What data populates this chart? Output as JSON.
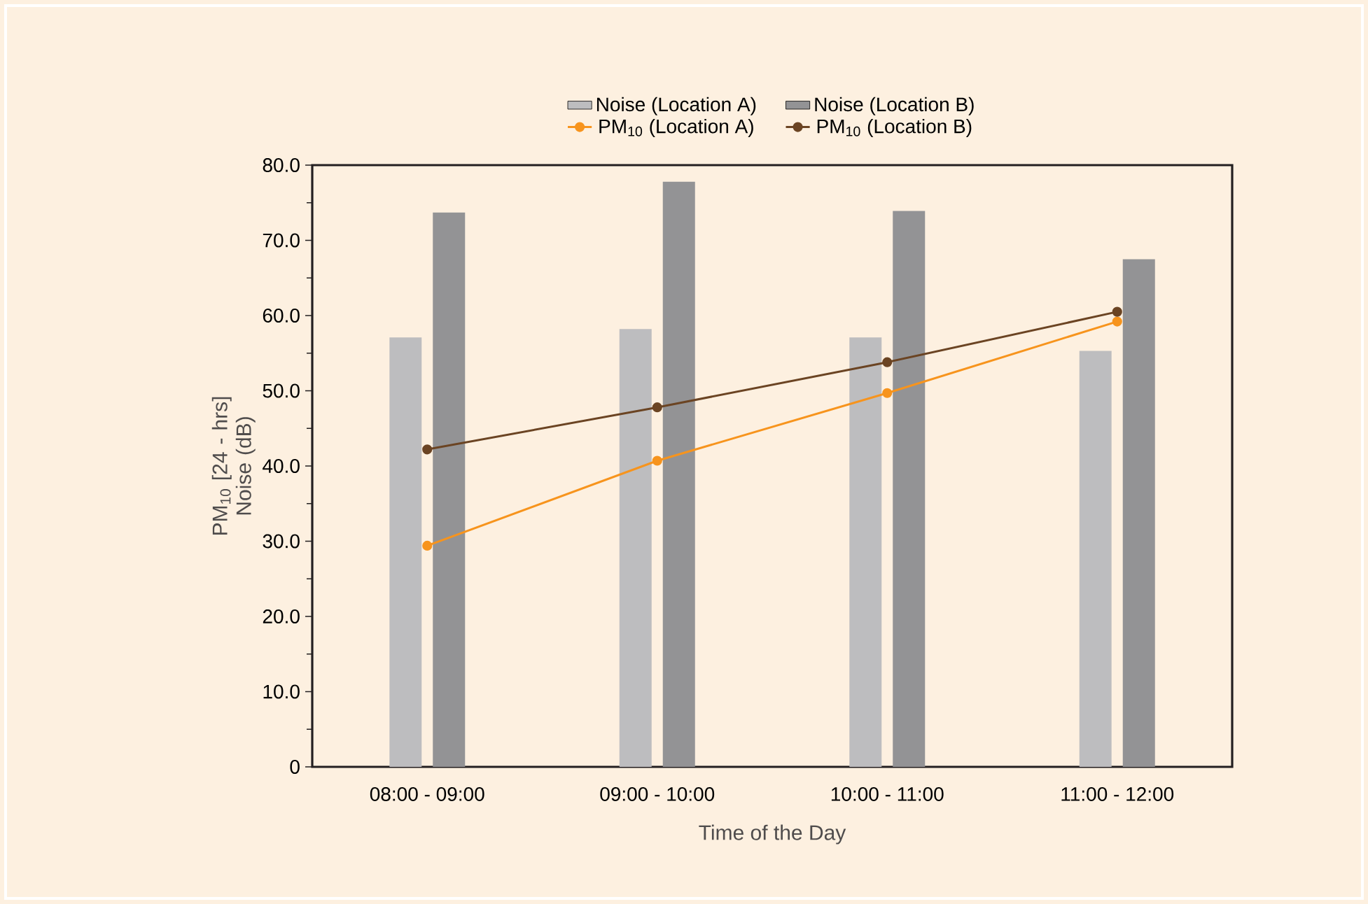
{
  "chart_data": {
    "type": "bar",
    "xlabel": "Time of the Day",
    "ylabel": "PM$_{10}$ [24 - hrs] Noise (dB)",
    "categories": [
      "08:00 - 09:00",
      "09:00 - 10:00",
      "10:00 - 11:00",
      "11:00 - 12:00"
    ],
    "series": [
      {
        "name": "Noise (Location A)",
        "color": "#bdbdbf",
        "values": [
          57.1,
          58.2,
          57.1,
          55.3
        ]
      },
      {
        "name": "Noise (Location B)",
        "color": "#939395",
        "values": [
          73.7,
          77.8,
          73.9,
          67.5
        ]
      },
      {
        "name": "PM$_{10}$ (Location A)",
        "type": "line",
        "color": "#f7941d",
        "values": [
          29.4,
          40.7,
          49.7,
          59.2
        ]
      },
      {
        "name": "PM$_{10}$ (Location B)",
        "type": "line",
        "color": "#6b4423",
        "values": [
          42.2,
          47.8,
          53.8,
          60.5
        ]
      }
    ],
    "ylim": [
      0,
      80
    ],
    "yticks": [
      {
        "value": 0,
        "label": "0"
      },
      {
        "value": 10,
        "label": "10.0"
      },
      {
        "value": 20,
        "label": "20.0"
      },
      {
        "value": 30,
        "label": "30.0"
      },
      {
        "value": 40,
        "label": "40.0"
      },
      {
        "value": 50,
        "label": "50.0"
      },
      {
        "value": 60,
        "label": "60.0"
      },
      {
        "value": 70,
        "label": "70.0"
      },
      {
        "value": 80,
        "label": "80.0"
      }
    ],
    "legend": "top",
    "marker": "circle",
    "grid": false
  }
}
